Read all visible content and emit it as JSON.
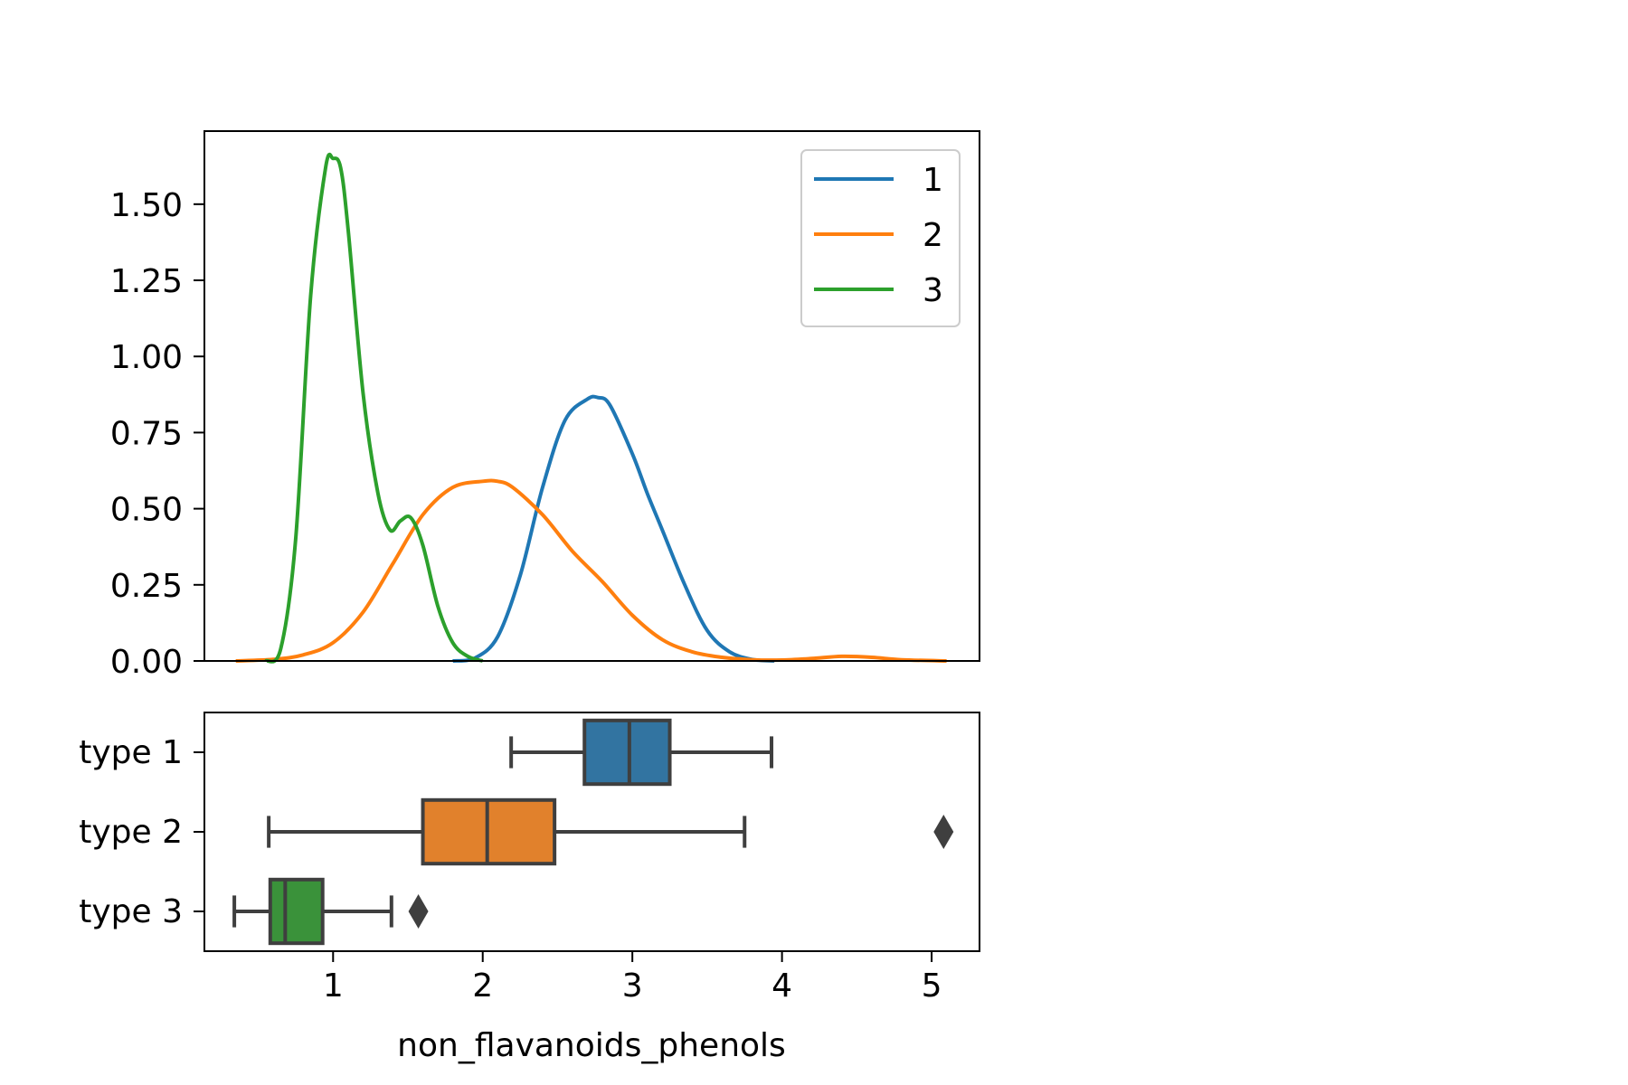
{
  "chart_data": [
    {
      "type": "line",
      "subtype": "kde",
      "title": "",
      "xlabel": "",
      "ylabel": "",
      "xlim": [
        0.14,
        5.32
      ],
      "ylim": [
        0,
        1.74
      ],
      "y_ticks": [
        0.0,
        0.25,
        0.5,
        0.75,
        1.0,
        1.25,
        1.5
      ],
      "y_tick_labels": [
        "0.00",
        "0.25",
        "0.50",
        "0.75",
        "1.00",
        "1.25",
        "1.50"
      ],
      "legend": {
        "placement": "upper right",
        "entries": [
          "1",
          "2",
          "3"
        ]
      },
      "series": [
        {
          "name": "1",
          "color": "#1f77b4",
          "x": [
            1.8,
            1.95,
            2.1,
            2.25,
            2.4,
            2.55,
            2.7,
            2.77,
            2.85,
            3.0,
            3.1,
            3.2,
            3.35,
            3.5,
            3.65,
            3.8,
            3.95
          ],
          "y": [
            0.0,
            0.01,
            0.08,
            0.28,
            0.57,
            0.79,
            0.86,
            0.865,
            0.84,
            0.68,
            0.55,
            0.43,
            0.25,
            0.1,
            0.03,
            0.005,
            0.0
          ]
        },
        {
          "name": "2",
          "color": "#ff7f0e",
          "x": [
            0.35,
            0.6,
            0.8,
            1.0,
            1.2,
            1.4,
            1.6,
            1.8,
            2.0,
            2.1,
            2.2,
            2.4,
            2.6,
            2.8,
            3.0,
            3.2,
            3.4,
            3.6,
            3.8,
            4.0,
            4.2,
            4.4,
            4.6,
            4.8,
            5.1
          ],
          "y": [
            0.0,
            0.005,
            0.02,
            0.06,
            0.16,
            0.32,
            0.48,
            0.57,
            0.59,
            0.59,
            0.57,
            0.48,
            0.36,
            0.26,
            0.15,
            0.07,
            0.03,
            0.012,
            0.004,
            0.003,
            0.008,
            0.015,
            0.012,
            0.004,
            0.0
          ]
        },
        {
          "name": "3",
          "color": "#2ca02c",
          "x": [
            0.55,
            0.65,
            0.75,
            0.85,
            0.95,
            1.0,
            1.05,
            1.1,
            1.2,
            1.3,
            1.38,
            1.45,
            1.52,
            1.6,
            1.7,
            1.8,
            1.9,
            2.0
          ],
          "y": [
            0.0,
            0.04,
            0.4,
            1.2,
            1.62,
            1.65,
            1.62,
            1.42,
            0.88,
            0.55,
            0.43,
            0.46,
            0.47,
            0.38,
            0.18,
            0.06,
            0.015,
            0.0
          ]
        }
      ]
    },
    {
      "type": "box",
      "title": "",
      "xlabel": "non_flavanoids_phenols",
      "ylabel": "",
      "xlim": [
        0.14,
        5.32
      ],
      "x_ticks": [
        1,
        2,
        3,
        4,
        5
      ],
      "x_tick_labels": [
        "1",
        "2",
        "3",
        "4",
        "5"
      ],
      "categories": [
        "type 1",
        "type 2",
        "type 3"
      ],
      "boxes": [
        {
          "label": "type 1",
          "color": "#3274a1",
          "whisker_low": 2.19,
          "q1": 2.68,
          "median": 2.98,
          "q3": 3.25,
          "whisker_high": 3.93,
          "outliers": []
        },
        {
          "label": "type 2",
          "color": "#e1812c",
          "whisker_low": 0.57,
          "q1": 1.6,
          "median": 2.03,
          "q3": 2.48,
          "whisker_high": 3.75,
          "outliers": [
            5.08
          ]
        },
        {
          "label": "type 3",
          "color": "#3a923a",
          "whisker_low": 0.34,
          "q1": 0.58,
          "median": 0.68,
          "q3": 0.93,
          "whisker_high": 1.39,
          "outliers": [
            1.57
          ]
        }
      ]
    }
  ]
}
